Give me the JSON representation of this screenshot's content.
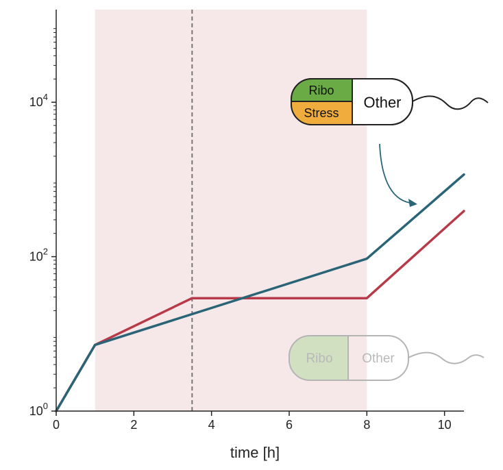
{
  "chart_data": {
    "type": "line",
    "xlabel": "time [h]",
    "ylabel": "",
    "xlim": [
      0,
      10.5
    ],
    "ylim_log10": [
      0,
      5.2
    ],
    "yscale": "log",
    "x_ticks": [
      "0",
      "2",
      "4",
      "6",
      "8",
      "10"
    ],
    "y_ticks": [
      {
        "base": "10",
        "exp": "0"
      },
      {
        "base": "10",
        "exp": "2"
      },
      {
        "base": "10",
        "exp": "4"
      }
    ],
    "shaded_region": {
      "x": [
        1,
        8
      ],
      "color": "#f6e8e8"
    },
    "vline": {
      "x": 3.5,
      "style": "dashed",
      "color": "#777777"
    },
    "grid": false,
    "series": [
      {
        "color": "#b83a48",
        "x": [
          0,
          1,
          3.5,
          8,
          10.5
        ],
        "y": [
          1,
          7.2,
          29,
          29,
          390
        ]
      },
      {
        "color": "#2a6477",
        "x": [
          0,
          1,
          8,
          10.5
        ],
        "y": [
          1,
          7.2,
          94,
          1160
        ]
      }
    ],
    "cell_stressed": {
      "ribo": "Ribo",
      "stress": "Stress",
      "other": "Other",
      "ribo_color": "#6aab45",
      "stress_color": "#f0ac3c"
    },
    "cell_unstressed": {
      "ribo": "Ribo",
      "other": "Other",
      "ribo_color": "#d2e0c2"
    }
  }
}
